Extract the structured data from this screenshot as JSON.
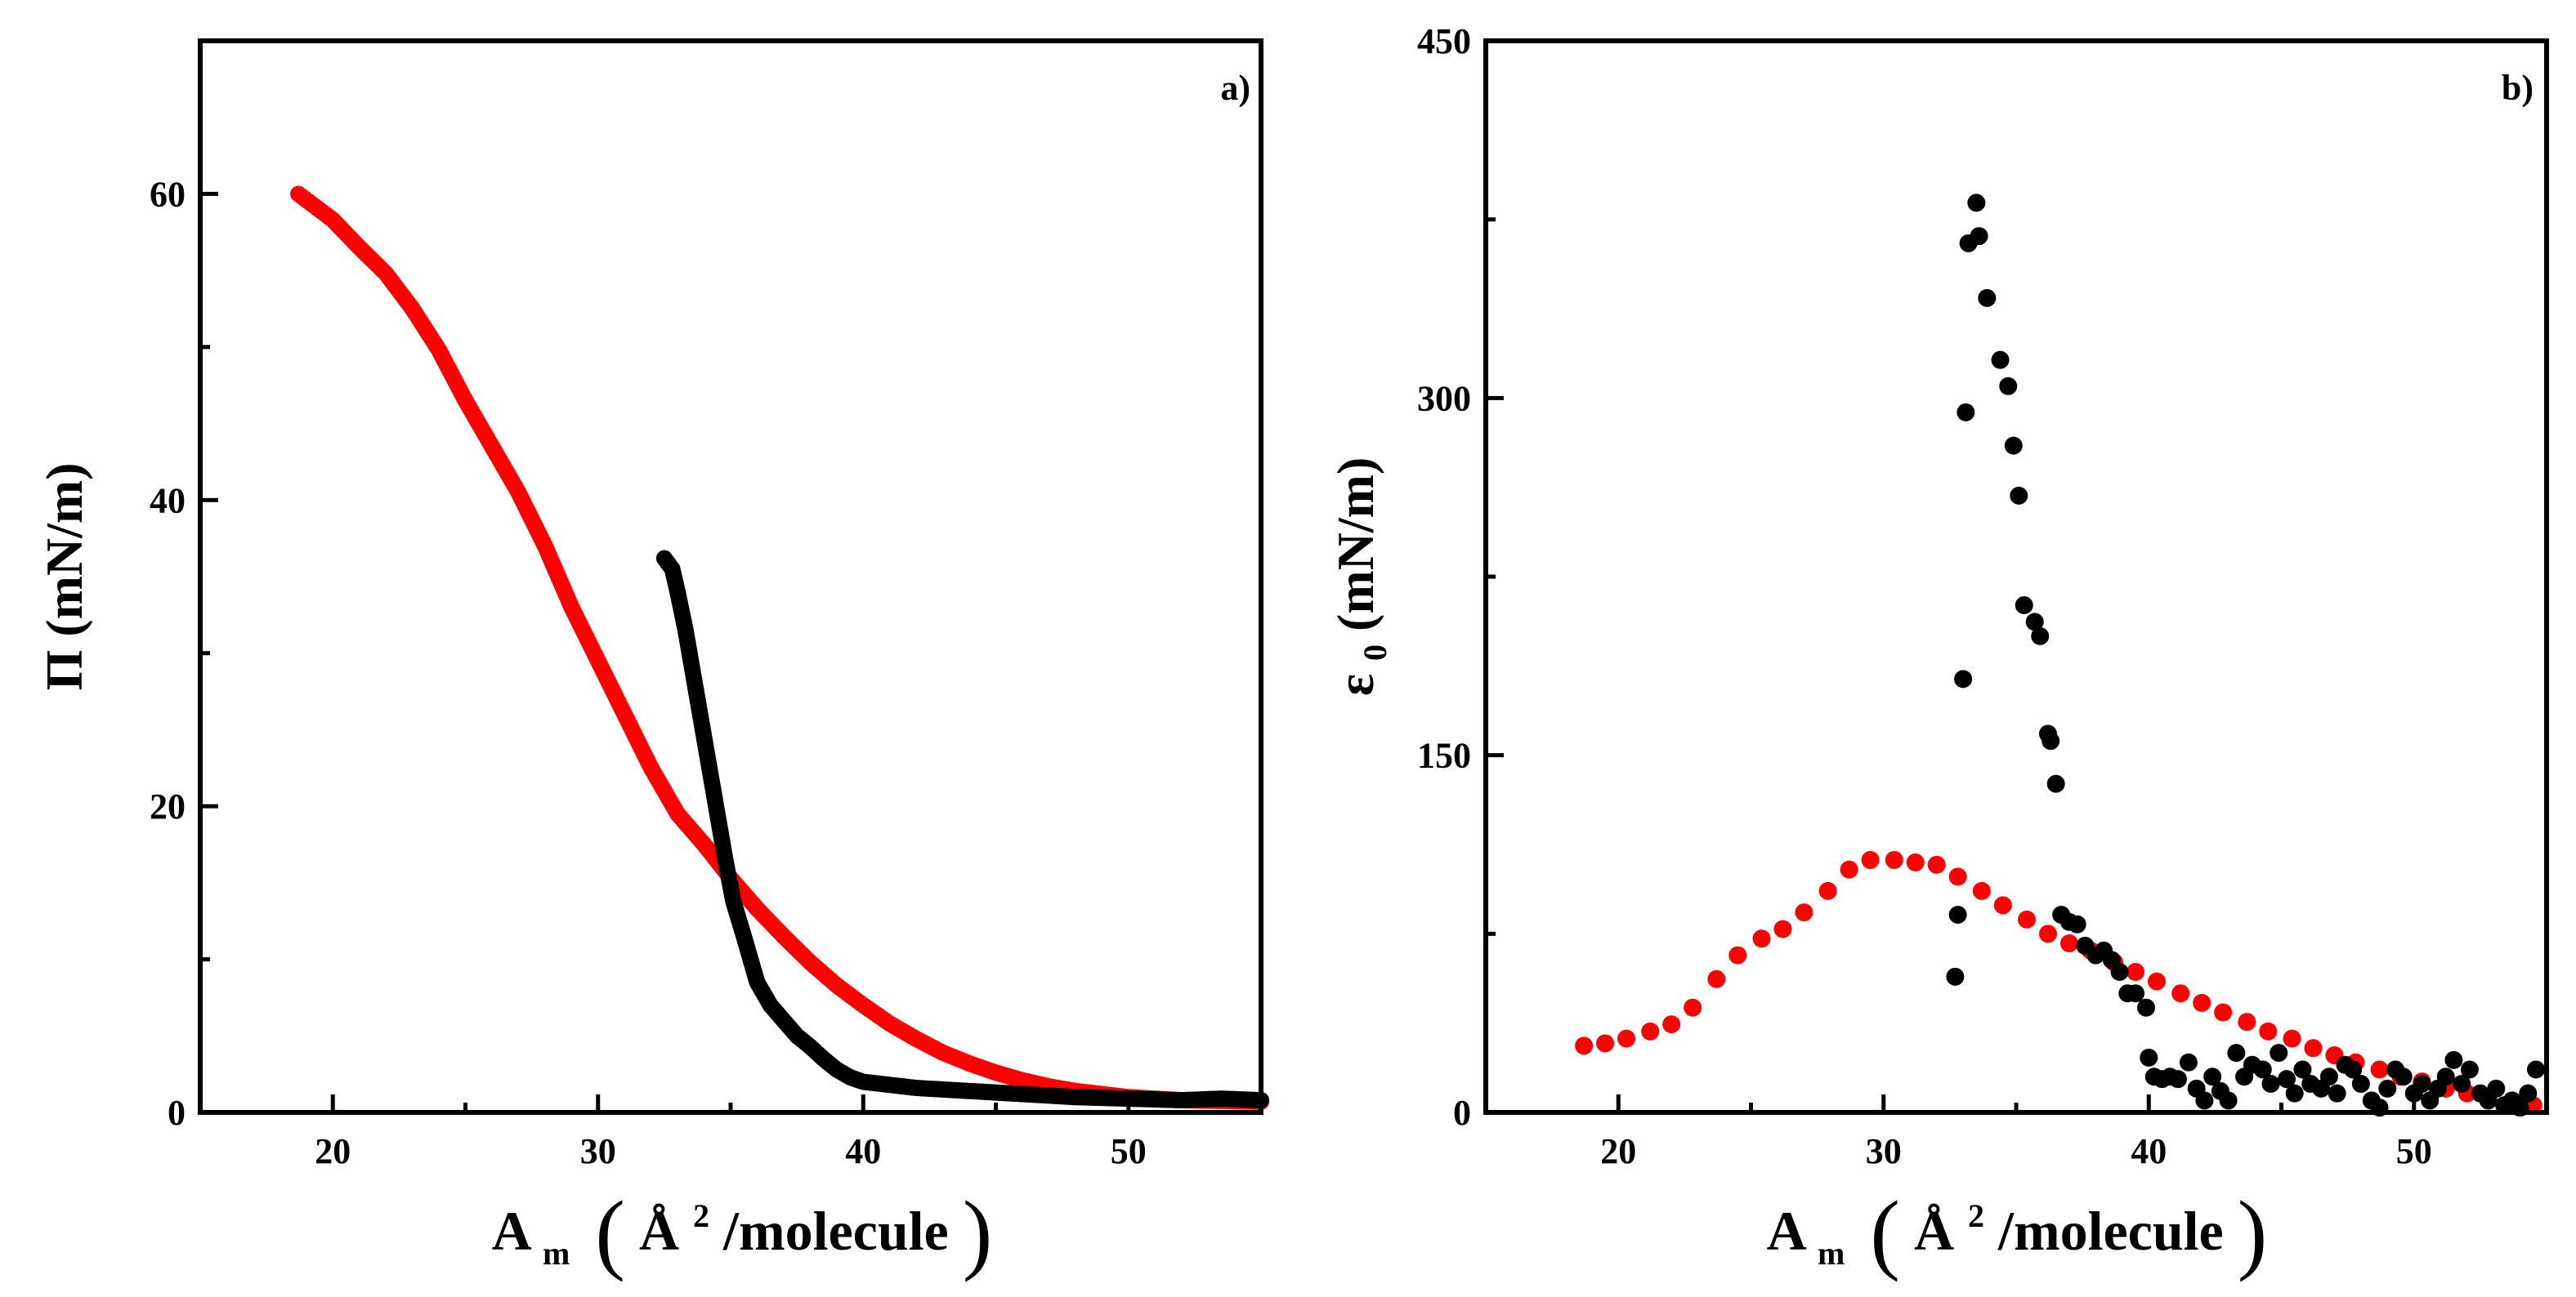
{
  "chart_data": [
    {
      "panel": "a)",
      "type": "scatter",
      "xlabel": {
        "main": "A",
        "sub": "m",
        "unit_open": "(",
        "unit_a": "Å",
        "sup": "2",
        "unit_rest": "/molecule",
        "unit_close": ")"
      },
      "ylabel": "Π (mN/m)",
      "xlim": [
        15,
        55
      ],
      "ylim": [
        0,
        70
      ],
      "xticks": [
        20,
        30,
        40,
        50
      ],
      "yticks": [
        0,
        20,
        40,
        60
      ],
      "series": [
        {
          "name": "red",
          "color": "#ff0000",
          "style": "dense",
          "points": [
            [
              18.7,
              60
            ],
            [
              20,
              58.3
            ],
            [
              21,
              56.5
            ],
            [
              22,
              54.8
            ],
            [
              23,
              52.5
            ],
            [
              24,
              49.8
            ],
            [
              25,
              46.5
            ],
            [
              26,
              43.5
            ],
            [
              27,
              40.5
            ],
            [
              28,
              37
            ],
            [
              29,
              33
            ],
            [
              30,
              29.5
            ],
            [
              31,
              26
            ],
            [
              32,
              22.5
            ],
            [
              33,
              19.5
            ],
            [
              34,
              17.5
            ],
            [
              35,
              15.3
            ],
            [
              36,
              13.3
            ],
            [
              37,
              11.5
            ],
            [
              38,
              9.8
            ],
            [
              39,
              8.3
            ],
            [
              40,
              7
            ],
            [
              41,
              5.8
            ],
            [
              42,
              4.8
            ],
            [
              43,
              3.9
            ],
            [
              44,
              3.2
            ],
            [
              45,
              2.6
            ],
            [
              46,
              2.1
            ],
            [
              47,
              1.7
            ],
            [
              48,
              1.4
            ],
            [
              49,
              1.2
            ],
            [
              50,
              1
            ],
            [
              52,
              0.8
            ],
            [
              55,
              0.7
            ]
          ]
        },
        {
          "name": "black",
          "color": "#000000",
          "style": "dense",
          "points": [
            [
              32.5,
              36.2
            ],
            [
              32.8,
              35.5
            ],
            [
              33,
              34
            ],
            [
              33.3,
              31.5
            ],
            [
              33.6,
              28.5
            ],
            [
              33.9,
              25.5
            ],
            [
              34.2,
              22.5
            ],
            [
              34.5,
              19.5
            ],
            [
              34.8,
              16.5
            ],
            [
              35.1,
              13.8
            ],
            [
              35.5,
              11.5
            ],
            [
              36,
              8.5
            ],
            [
              36.5,
              7
            ],
            [
              37,
              6
            ],
            [
              37.5,
              5
            ],
            [
              38,
              4.3
            ],
            [
              38.5,
              3.5
            ],
            [
              39,
              2.8
            ],
            [
              39.5,
              2.3
            ],
            [
              40,
              2
            ],
            [
              41,
              1.8
            ],
            [
              42,
              1.6
            ],
            [
              44,
              1.4
            ],
            [
              46,
              1.2
            ],
            [
              48,
              1
            ],
            [
              50,
              0.9
            ],
            [
              52,
              0.8
            ],
            [
              53.5,
              0.9
            ],
            [
              55,
              0.8
            ]
          ]
        }
      ]
    },
    {
      "panel": "b)",
      "type": "scatter",
      "xlabel": {
        "main": "A",
        "sub": "m",
        "unit_open": "(",
        "unit_a": "Å",
        "sup": "2",
        "unit_rest": "/molecule",
        "unit_close": ")"
      },
      "ylabel": {
        "main": "ε",
        "sub": "0",
        "rest": " (mN/m)"
      },
      "xlim": [
        15,
        55
      ],
      "ylim": [
        0,
        450
      ],
      "xticks": [
        20,
        30,
        40,
        50
      ],
      "yticks": [
        0,
        150,
        300,
        450
      ],
      "series": [
        {
          "name": "red",
          "color": "#ff0000",
          "style": "sparse",
          "points": [
            [
              18.7,
              28
            ],
            [
              19.5,
              29
            ],
            [
              20.3,
              31
            ],
            [
              21.2,
              34
            ],
            [
              22,
              37
            ],
            [
              22.8,
              44
            ],
            [
              23.7,
              56
            ],
            [
              24.5,
              66
            ],
            [
              25.4,
              73
            ],
            [
              26.2,
              77
            ],
            [
              27,
              84
            ],
            [
              27.9,
              93
            ],
            [
              28.7,
              102
            ],
            [
              29.5,
              106
            ],
            [
              30.4,
              106
            ],
            [
              31.2,
              105
            ],
            [
              32,
              104
            ],
            [
              32.8,
              99
            ],
            [
              33.7,
              93
            ],
            [
              34.5,
              87
            ],
            [
              35.4,
              81
            ],
            [
              36.2,
              75
            ],
            [
              37,
              71
            ],
            [
              37.8,
              68
            ],
            [
              38.7,
              63
            ],
            [
              39.5,
              59
            ],
            [
              40.3,
              55
            ],
            [
              41.2,
              50
            ],
            [
              42,
              46
            ],
            [
              42.8,
              42
            ],
            [
              43.7,
              38
            ],
            [
              44.5,
              34
            ],
            [
              45.4,
              31
            ],
            [
              46.2,
              27
            ],
            [
              47,
              24
            ],
            [
              47.8,
              21
            ],
            [
              48.7,
              18
            ],
            [
              49.5,
              15
            ],
            [
              50.3,
              13
            ],
            [
              51.2,
              10
            ],
            [
              52,
              8
            ],
            [
              52.8,
              6
            ],
            [
              53.7,
              4
            ],
            [
              54.5,
              3
            ]
          ]
        },
        {
          "name": "black",
          "color": "#000000",
          "style": "sparse",
          "points": [
            [
              32.7,
              57
            ],
            [
              32.8,
              83
            ],
            [
              33,
              182
            ],
            [
              33.1,
              294
            ],
            [
              33.2,
              365
            ],
            [
              33.5,
              382
            ],
            [
              33.6,
              368
            ],
            [
              33.9,
              342
            ],
            [
              34.4,
              316
            ],
            [
              34.7,
              305
            ],
            [
              34.9,
              280
            ],
            [
              35.1,
              259
            ],
            [
              35.3,
              213
            ],
            [
              35.7,
              206
            ],
            [
              35.9,
              200
            ],
            [
              36.2,
              159
            ],
            [
              36.3,
              156
            ],
            [
              36.5,
              138
            ],
            [
              36.7,
              83
            ],
            [
              37,
              80
            ],
            [
              37.3,
              79
            ],
            [
              37.6,
              70
            ],
            [
              38,
              66
            ],
            [
              38.3,
              68
            ],
            [
              38.6,
              64
            ],
            [
              38.9,
              59
            ],
            [
              39.2,
              50
            ],
            [
              39.5,
              50
            ],
            [
              39.9,
              44
            ],
            [
              40,
              23
            ],
            [
              40.2,
              15
            ],
            [
              40.5,
              14
            ],
            [
              40.8,
              15
            ],
            [
              41.1,
              14
            ],
            [
              41.5,
              21
            ],
            [
              41.8,
              10
            ],
            [
              42.1,
              5
            ],
            [
              42.4,
              15
            ],
            [
              42.7,
              9
            ],
            [
              43,
              5
            ],
            [
              43.3,
              25
            ],
            [
              43.6,
              15
            ],
            [
              43.9,
              20
            ],
            [
              44.3,
              18
            ],
            [
              44.6,
              12
            ],
            [
              44.9,
              25
            ],
            [
              45.2,
              14
            ],
            [
              45.5,
              8
            ],
            [
              45.8,
              18
            ],
            [
              46.1,
              12
            ],
            [
              46.5,
              10
            ],
            [
              46.8,
              15
            ],
            [
              47.1,
              8
            ],
            [
              47.4,
              20
            ],
            [
              47.7,
              18
            ],
            [
              48,
              12
            ],
            [
              48.4,
              5
            ],
            [
              48.7,
              2
            ],
            [
              49,
              10
            ],
            [
              49.3,
              18
            ],
            [
              49.6,
              15
            ],
            [
              50,
              8
            ],
            [
              50.3,
              12
            ],
            [
              50.6,
              5
            ],
            [
              50.9,
              10
            ],
            [
              51.2,
              15
            ],
            [
              51.5,
              22
            ],
            [
              51.8,
              12
            ],
            [
              52.1,
              18
            ],
            [
              52.5,
              8
            ],
            [
              52.8,
              5
            ],
            [
              53.1,
              10
            ],
            [
              53.4,
              3
            ],
            [
              53.7,
              5
            ],
            [
              54,
              2
            ],
            [
              54.3,
              8
            ],
            [
              54.6,
              18
            ]
          ]
        }
      ]
    }
  ]
}
